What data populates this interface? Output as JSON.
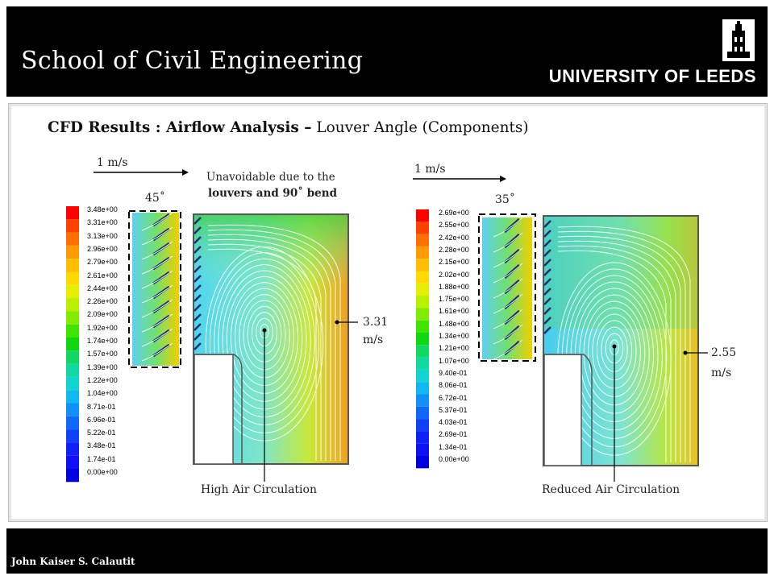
{
  "header": {
    "title": "School of Civil Engineering",
    "university": "UNIVERSITY OF LEEDS"
  },
  "slide": {
    "title_bold": "CFD Results : Airflow Analysis –",
    "title_rest": " Louver Angle (Components)"
  },
  "footer": {
    "author": "John Kaiser S. Calautit"
  },
  "left": {
    "velocity_ref": "1 m/s",
    "angle": "45˚",
    "note_line1": "Unavoidable due to the",
    "note_line2": "louvers and 90˚ bend",
    "max_value": "3.31",
    "max_unit": "m/s",
    "caption": "High Air Circulation",
    "colorbar": [
      "3.48e+00",
      "3.31e+00",
      "3.13e+00",
      "2.96e+00",
      "2.79e+00",
      "2.61e+00",
      "2.44e+00",
      "2.26e+00",
      "2.09e+00",
      "1.92e+00",
      "1.74e+00",
      "1.57e+00",
      "1.39e+00",
      "1.22e+00",
      "1.04e+00",
      "8.71e-01",
      "6.96e-01",
      "5.22e-01",
      "3.48e-01",
      "1.74e-01",
      "0.00e+00"
    ]
  },
  "right": {
    "velocity_ref": "1 m/s",
    "angle": "35˚",
    "max_value": "2.55",
    "max_unit": "m/s",
    "caption": "Reduced Air Circulation",
    "colorbar": [
      "2.69e+00",
      "2.55e+00",
      "2.42e+00",
      "2.28e+00",
      "2.15e+00",
      "2.02e+00",
      "1.88e+00",
      "1.75e+00",
      "1.61e+00",
      "1.48e+00",
      "1.34e+00",
      "1.21e+00",
      "1.07e+00",
      "9.40e-01",
      "8.06e-01",
      "6.72e-01",
      "5.37e-01",
      "4.03e-01",
      "2.69e-01",
      "1.34e-01",
      "0.00e+00"
    ]
  }
}
